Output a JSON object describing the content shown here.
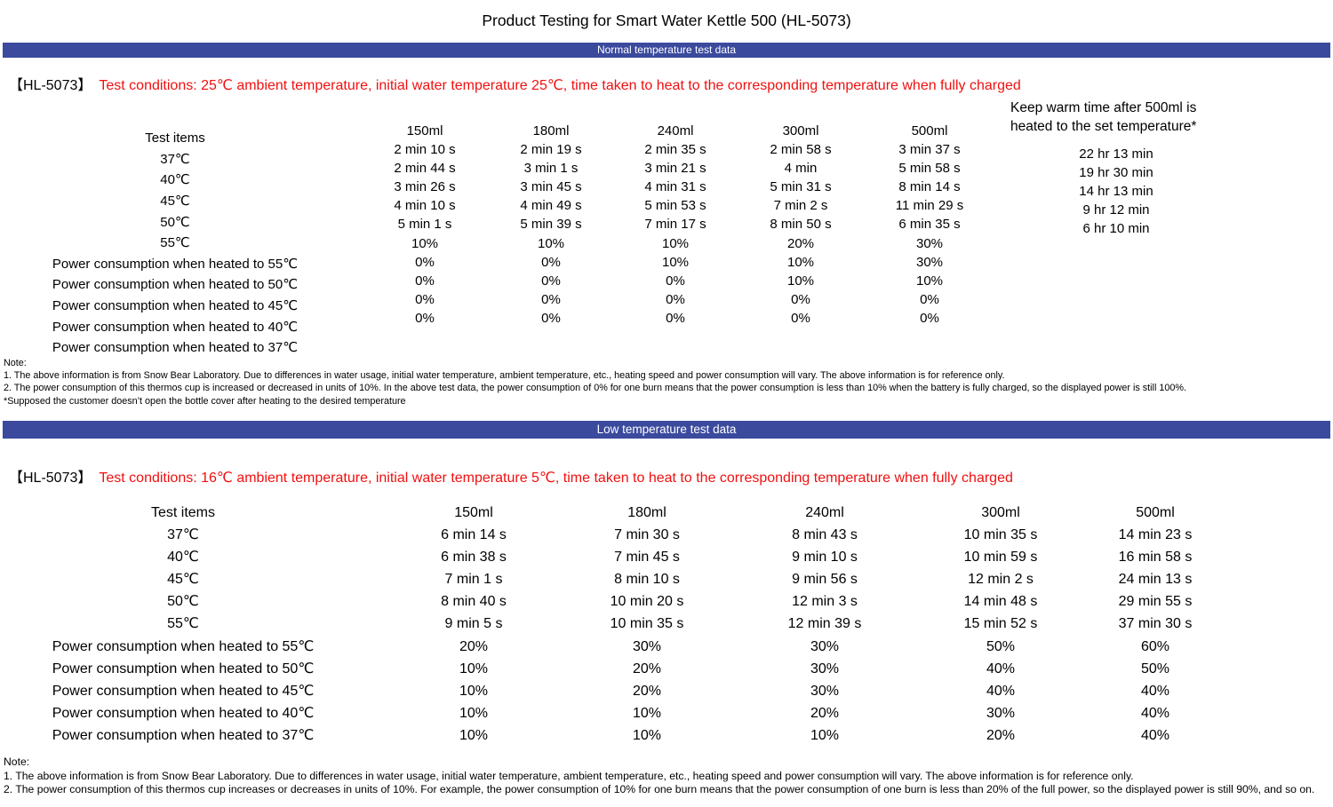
{
  "title": "Product Testing for Smart Water Kettle 500 (HL-5073)",
  "colors": {
    "banner_blue": "#3b4a9d",
    "condition_red": "#f01010",
    "banner_text": "#ffffff"
  },
  "sections": [
    {
      "banner": "Normal temperature test data",
      "model": "【HL-5073】",
      "conditions": "Test conditions: 25℃ ambient temperature, initial water temperature 25℃, time taken to heat to the corresponding temperature when fully charged",
      "table": {
        "row_labels": [
          "Test items",
          "37℃",
          "40℃",
          "45℃",
          "50℃",
          "55℃",
          "Power consumption when heated to 55℃",
          "Power consumption when heated to 50℃",
          "Power consumption when heated to 45℃",
          "Power consumption when heated to 40℃",
          "Power consumption when heated to 37℃"
        ],
        "columns": [
          {
            "header": "150ml",
            "values": [
              "2 min 10 s",
              "2 min 44 s",
              "3 min 26 s",
              "4 min 10 s",
              "5 min 1 s",
              "10%",
              "0%",
              "0%",
              "0%",
              "0%"
            ]
          },
          {
            "header": "180ml",
            "values": [
              "2 min 19 s",
              "3 min 1 s",
              "3 min 45 s",
              "4 min 49 s",
              "5 min 39 s",
              "10%",
              "0%",
              "0%",
              "0%",
              "0%"
            ]
          },
          {
            "header": "240ml",
            "values": [
              "2 min 35 s",
              "3 min 21 s",
              "4 min 31 s",
              "5 min 53 s",
              "7 min 17 s",
              "10%",
              "10%",
              "0%",
              "0%",
              "0%"
            ]
          },
          {
            "header": "300ml",
            "values": [
              "2 min 58 s",
              "4 min",
              "5 min 31 s",
              "7 min 2 s",
              "8 min 50 s",
              "20%",
              "10%",
              "10%",
              "0%",
              "0%"
            ]
          },
          {
            "header": "500ml",
            "values": [
              "3 min 37 s",
              "5 min 58 s",
              "8 min 14 s",
              "11 min 29 s",
              "6 min 35 s",
              "30%",
              "30%",
              "10%",
              "0%",
              "0%"
            ]
          }
        ],
        "keep_warm": {
          "header": "Keep warm time after 500ml is heated to the set temperature*",
          "values": [
            "22 hr 13 min",
            "19 hr 30 min",
            "14 hr 13 min",
            "9 hr 12 min",
            "6 hr 10 min"
          ]
        }
      },
      "notes": [
        "Note:",
        "1. The above information is from Snow Bear Laboratory. Due to differences in water usage, initial water temperature, ambient temperature, etc., heating speed and power consumption will vary. The above information is for reference only.",
        "2. The power consumption of this thermos cup is increased or decreased in units of 10%. In the above test data, the power consumption of 0% for one burn means that the power consumption is less than 10% when the battery is fully charged, so the displayed power is still 100%.",
        "*Supposed the customer doesn’t open the bottle cover after heating to the desired temperature"
      ]
    },
    {
      "banner": "Low temperature test data",
      "model": "【HL-5073】",
      "conditions": "Test conditions: 16℃ ambient temperature, initial water temperature 5℃, time taken to heat to the corresponding temperature when fully charged",
      "table": {
        "row_labels": [
          "Test items",
          "37℃",
          "40℃",
          "45℃",
          "50℃",
          "55℃",
          "Power consumption when heated to 55℃",
          "Power consumption when heated to 50℃",
          "Power consumption when heated to 45℃",
          "Power consumption when heated to 40℃",
          "Power consumption when heated to 37℃"
        ],
        "columns": [
          {
            "header": "150ml",
            "values": [
              "6 min 14 s",
              "6 min 38 s",
              "7 min 1 s",
              "8 min 40 s",
              "9 min 5 s",
              "20%",
              "10%",
              "10%",
              "10%",
              "10%"
            ]
          },
          {
            "header": "180ml",
            "values": [
              "7 min 30 s",
              "7 min 45 s",
              "8 min 10 s",
              "10 min 20 s",
              "10 min 35 s",
              "30%",
              "20%",
              "20%",
              "10%",
              "10%"
            ]
          },
          {
            "header": "240ml",
            "values": [
              "8 min 43 s",
              "9 min 10 s",
              "9 min 56 s",
              "12 min 3 s",
              "12 min 39 s",
              "30%",
              "30%",
              "30%",
              "20%",
              "10%"
            ]
          },
          {
            "header": "300ml",
            "values": [
              "10 min 35 s",
              "10 min 59 s",
              "12 min 2 s",
              "14 min 48 s",
              "15 min 52 s",
              "50%",
              "40%",
              "40%",
              "30%",
              "20%"
            ]
          },
          {
            "header": "500ml",
            "values": [
              "14 min 23 s",
              "16 min 58 s",
              "24 min 13 s",
              "29 min 55 s",
              "37 min 30 s",
              "60%",
              "50%",
              "40%",
              "40%",
              "40%"
            ]
          }
        ]
      },
      "notes": [
        "Note:",
        "1. The above information is from Snow Bear Laboratory. Due to differences in water usage, initial water temperature, ambient temperature, etc., heating speed and power consumption will vary. The above information is for reference only.",
        "2. The power consumption of this thermos cup increases or decreases in units of 10%. For example, the power consumption of 10% for one burn means that the power consumption of one burn is less than 20% of the full power, so the displayed power is still 90%, and so on."
      ]
    }
  ]
}
